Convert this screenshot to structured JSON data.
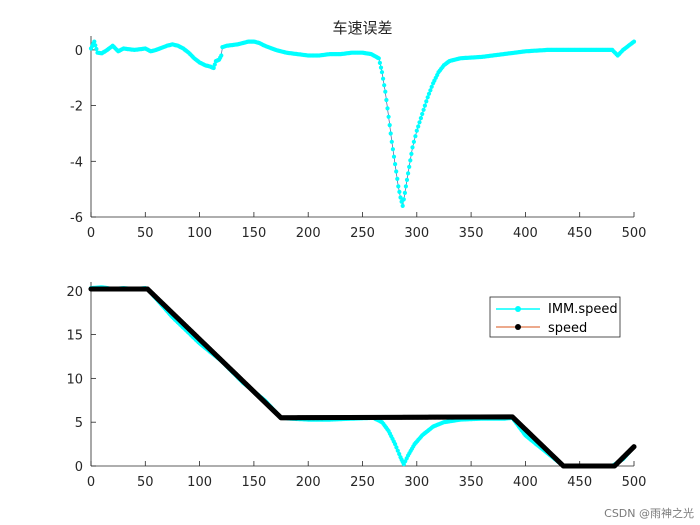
{
  "watermark": "CSDN @雨神之光",
  "colors": {
    "cyan": "#00FFFF",
    "black": "#000000",
    "speed_line": "#D95319",
    "axis": "#262626"
  },
  "chart_data": [
    {
      "type": "line",
      "title": "车速误差",
      "xlim": [
        0,
        500
      ],
      "ylim": [
        -6,
        0.5
      ],
      "xticks": [
        0,
        50,
        100,
        150,
        200,
        250,
        300,
        350,
        400,
        450,
        500
      ],
      "yticks": [
        0,
        -2,
        -4,
        -6
      ],
      "grid": false,
      "series": [
        {
          "color": "#00FFFF",
          "marker": "dot",
          "points": [
            [
              0,
              0.05
            ],
            [
              3,
              0.3
            ],
            [
              6,
              -0.1
            ],
            [
              10,
              -0.12
            ],
            [
              15,
              0.0
            ],
            [
              20,
              0.15
            ],
            [
              25,
              -0.05
            ],
            [
              30,
              0.05
            ],
            [
              40,
              0.0
            ],
            [
              50,
              0.05
            ],
            [
              55,
              -0.05
            ],
            [
              60,
              0.0
            ],
            [
              70,
              0.15
            ],
            [
              75,
              0.2
            ],
            [
              80,
              0.15
            ],
            [
              85,
              0.05
            ],
            [
              90,
              -0.1
            ],
            [
              95,
              -0.3
            ],
            [
              100,
              -0.45
            ],
            [
              105,
              -0.55
            ],
            [
              110,
              -0.6
            ],
            [
              113,
              -0.65
            ],
            [
              115,
              -0.4
            ],
            [
              118,
              -0.35
            ],
            [
              120,
              -0.2
            ],
            [
              121,
              0.1
            ],
            [
              125,
              0.15
            ],
            [
              135,
              0.2
            ],
            [
              145,
              0.3
            ],
            [
              150,
              0.3
            ],
            [
              155,
              0.25
            ],
            [
              160,
              0.15
            ],
            [
              170,
              0.0
            ],
            [
              180,
              -0.1
            ],
            [
              190,
              -0.15
            ],
            [
              200,
              -0.2
            ],
            [
              210,
              -0.2
            ],
            [
              220,
              -0.15
            ],
            [
              230,
              -0.15
            ],
            [
              240,
              -0.1
            ],
            [
              250,
              -0.1
            ],
            [
              258,
              -0.15
            ],
            [
              265,
              -0.3
            ],
            [
              268,
              -0.8
            ],
            [
              271,
              -1.5
            ],
            [
              274,
              -2.4
            ],
            [
              277,
              -3.3
            ],
            [
              280,
              -4.1
            ],
            [
              283,
              -4.9
            ],
            [
              285,
              -5.3
            ],
            [
              287,
              -5.6
            ],
            [
              290,
              -4.9
            ],
            [
              293,
              -4.2
            ],
            [
              296,
              -3.5
            ],
            [
              300,
              -2.9
            ],
            [
              305,
              -2.3
            ],
            [
              310,
              -1.7
            ],
            [
              315,
              -1.2
            ],
            [
              320,
              -0.8
            ],
            [
              325,
              -0.55
            ],
            [
              330,
              -0.4
            ],
            [
              340,
              -0.3
            ],
            [
              360,
              -0.25
            ],
            [
              380,
              -0.15
            ],
            [
              400,
              -0.05
            ],
            [
              420,
              0.0
            ],
            [
              440,
              0.0
            ],
            [
              460,
              0.0
            ],
            [
              480,
              0.0
            ],
            [
              485,
              -0.2
            ],
            [
              490,
              0.0
            ],
            [
              495,
              0.15
            ],
            [
              500,
              0.3
            ]
          ]
        }
      ]
    },
    {
      "type": "line",
      "xlim": [
        0,
        500
      ],
      "ylim": [
        0,
        21
      ],
      "xticks": [
        0,
        50,
        100,
        150,
        200,
        250,
        300,
        350,
        400,
        450,
        500
      ],
      "yticks": [
        0,
        5,
        10,
        15,
        20
      ],
      "grid": false,
      "legend_position": "top-right",
      "series": [
        {
          "name": "IMM.speed",
          "color": "#00FFFF",
          "marker": "dot",
          "points": [
            [
              0,
              20.3
            ],
            [
              10,
              20.4
            ],
            [
              20,
              20.2
            ],
            [
              30,
              20.3
            ],
            [
              40,
              20.2
            ],
            [
              50,
              20.3
            ],
            [
              52,
              20.2
            ],
            [
              75,
              17.0
            ],
            [
              100,
              14.0
            ],
            [
              120,
              12.0
            ],
            [
              140,
              9.5
            ],
            [
              160,
              7.5
            ],
            [
              175,
              5.5
            ],
            [
              185,
              5.4
            ],
            [
              200,
              5.3
            ],
            [
              220,
              5.3
            ],
            [
              240,
              5.4
            ],
            [
              260,
              5.5
            ],
            [
              268,
              5.0
            ],
            [
              274,
              4.0
            ],
            [
              280,
              2.5
            ],
            [
              285,
              1.0
            ],
            [
              288,
              0.2
            ],
            [
              292,
              1.2
            ],
            [
              298,
              2.5
            ],
            [
              305,
              3.5
            ],
            [
              315,
              4.5
            ],
            [
              325,
              5.0
            ],
            [
              340,
              5.3
            ],
            [
              360,
              5.4
            ],
            [
              380,
              5.4
            ],
            [
              388,
              5.5
            ],
            [
              400,
              3.5
            ],
            [
              420,
              1.5
            ],
            [
              435,
              0.0
            ],
            [
              450,
              0.0
            ],
            [
              470,
              0.0
            ],
            [
              480,
              0.0
            ],
            [
              490,
              0.8
            ],
            [
              500,
              2.2
            ]
          ]
        },
        {
          "name": "speed",
          "color": "#000000",
          "marker": "dot",
          "points": [
            [
              0,
              20.2
            ],
            [
              52,
              20.2
            ],
            [
              175,
              5.5
            ],
            [
              388,
              5.6
            ],
            [
              435,
              0.0
            ],
            [
              482,
              0.0
            ],
            [
              500,
              2.2
            ]
          ]
        }
      ]
    }
  ]
}
